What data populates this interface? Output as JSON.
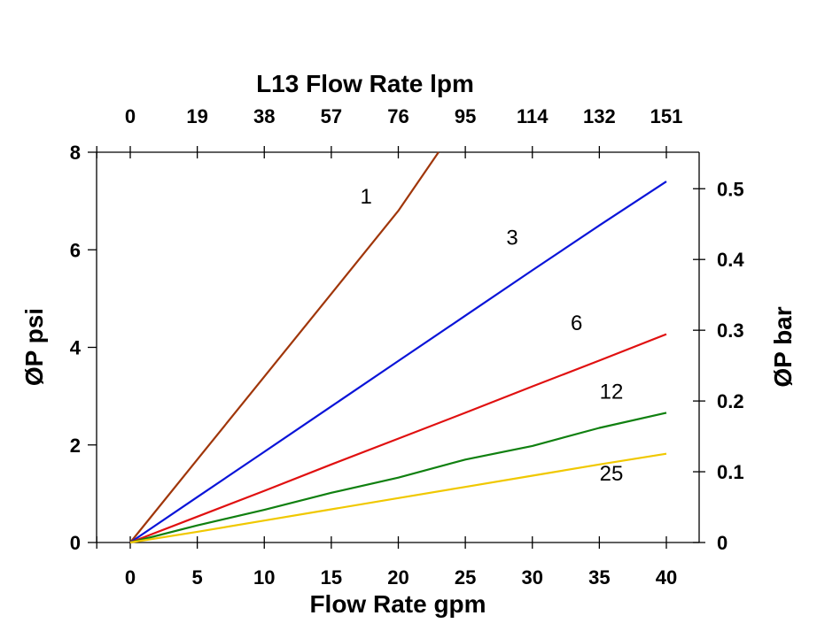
{
  "chart_data": {
    "type": "line",
    "title": "L13 Flow Rate lpm",
    "xlabel": "Flow Rate gpm",
    "ylabel": "ØP psi",
    "y2label": "ØP bar",
    "xlim": [
      0,
      40
    ],
    "ylim": [
      0,
      8
    ],
    "y2lim": [
      0,
      0.5516
    ],
    "grid": false,
    "legend": "none",
    "x_ticks": [
      "0",
      "5",
      "10",
      "15",
      "20",
      "25",
      "30",
      "35",
      "40"
    ],
    "x_tick_values": [
      0,
      5,
      10,
      15,
      20,
      25,
      30,
      35,
      40
    ],
    "x2_ticks": [
      "0",
      "19",
      "38",
      "57",
      "76",
      "95",
      "114",
      "132",
      "151"
    ],
    "y_ticks": [
      "0",
      "2",
      "4",
      "6",
      "8"
    ],
    "y_tick_values": [
      0,
      2,
      4,
      6,
      8
    ],
    "y2_ticks": [
      "0",
      "0.1",
      "0.2",
      "0.3",
      "0.4",
      "0.5"
    ],
    "y2_tick_values": [
      0,
      0.1,
      0.2,
      0.3,
      0.4,
      0.5
    ],
    "series": [
      {
        "name": "1",
        "color": "#a0360a",
        "x": [
          0,
          5,
          10,
          15,
          20,
          23
        ],
        "y": [
          0,
          1.7,
          3.4,
          5.1,
          6.8,
          8.0
        ],
        "label_at": [
          17.6,
          6.95
        ]
      },
      {
        "name": "3",
        "color": "#0a14d8",
        "x": [
          0,
          5,
          10,
          15,
          20,
          25,
          30,
          35,
          40
        ],
        "y": [
          0,
          0.93,
          1.86,
          2.79,
          3.72,
          4.65,
          5.58,
          6.5,
          7.4
        ],
        "label_at": [
          28.5,
          6.1
        ]
      },
      {
        "name": "6",
        "color": "#e01010",
        "x": [
          0,
          5,
          10,
          15,
          20,
          25,
          30,
          35,
          40
        ],
        "y": [
          0,
          0.53,
          1.06,
          1.6,
          2.13,
          2.66,
          3.2,
          3.73,
          4.27
        ],
        "label_at": [
          33.3,
          4.35
        ]
      },
      {
        "name": "12",
        "color": "#108010",
        "x": [
          0,
          5,
          10,
          15,
          20,
          25,
          30,
          35,
          40
        ],
        "y": [
          0,
          0.35,
          0.67,
          1.02,
          1.33,
          1.7,
          1.98,
          2.35,
          2.66
        ],
        "label_at": [
          35.9,
          2.95
        ]
      },
      {
        "name": "25",
        "color": "#f0c800",
        "x": [
          0,
          5,
          10,
          15,
          20,
          25,
          30,
          35,
          40
        ],
        "y": [
          0,
          0.22,
          0.45,
          0.68,
          0.91,
          1.14,
          1.37,
          1.6,
          1.82
        ],
        "label_at": [
          35.9,
          1.27
        ]
      }
    ]
  }
}
